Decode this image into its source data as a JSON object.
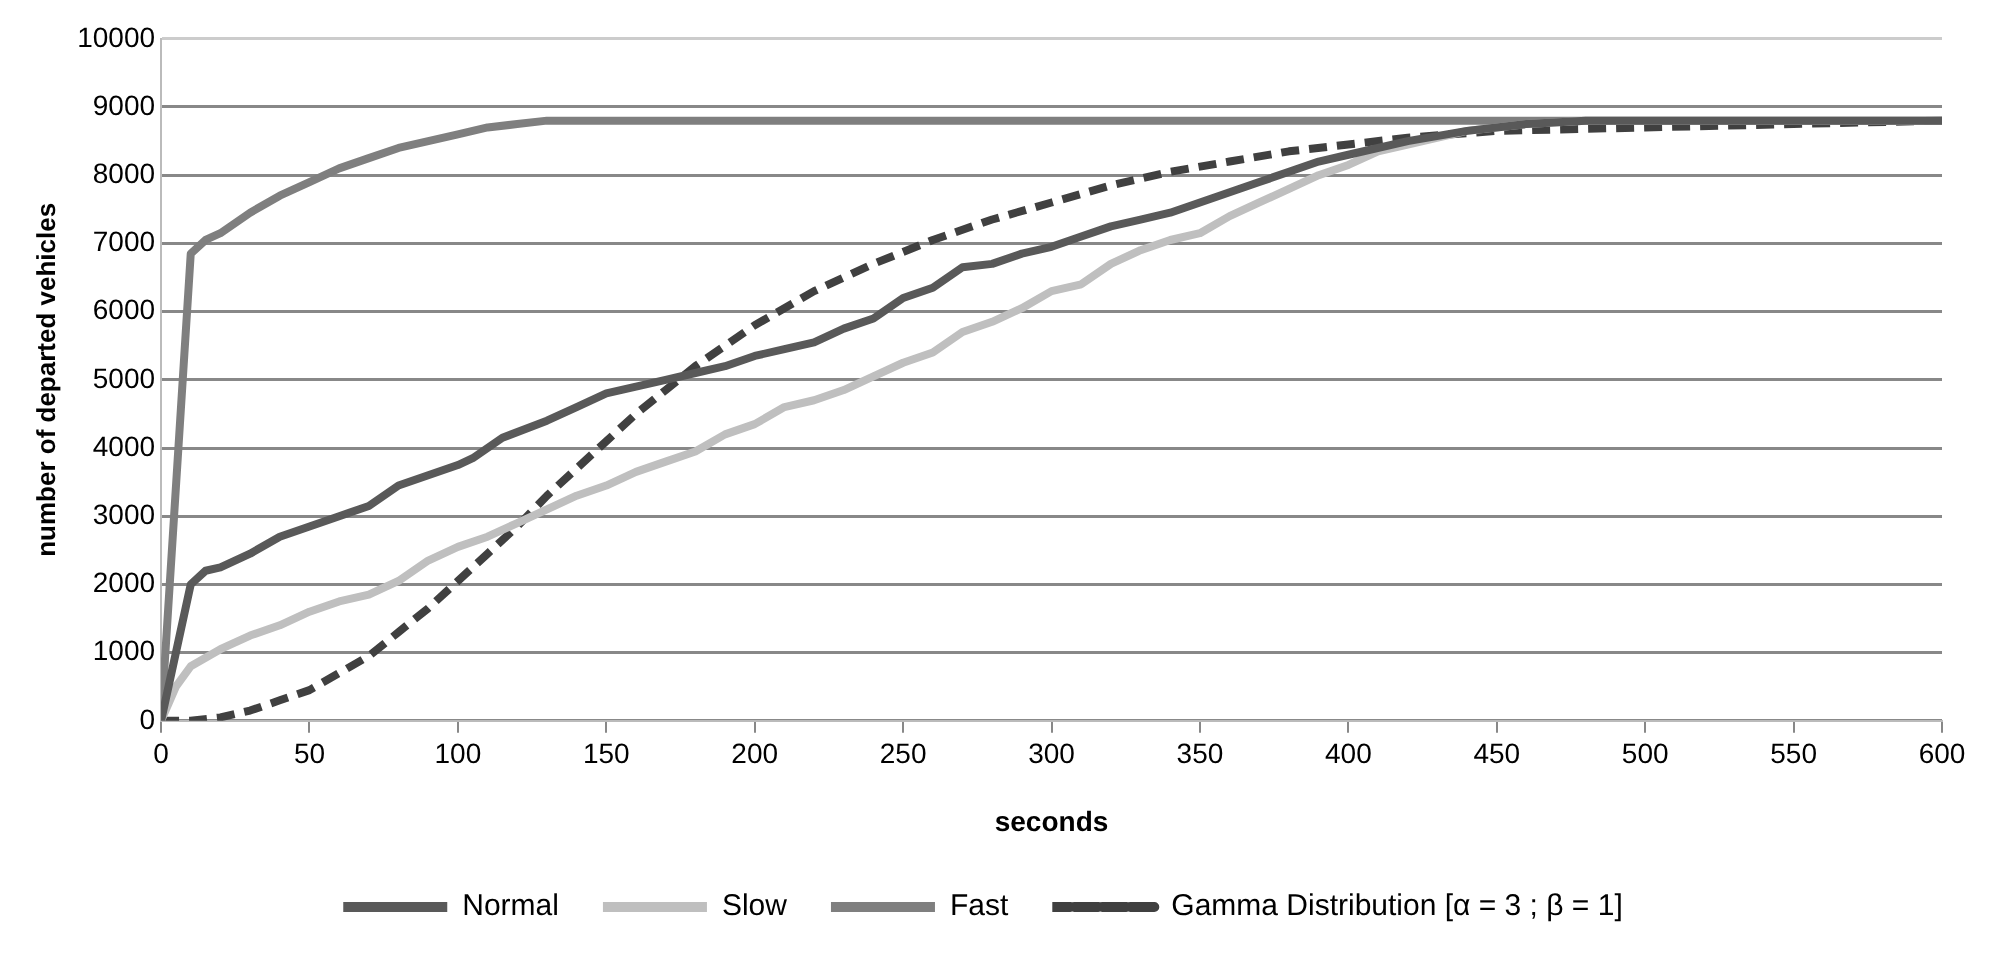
{
  "chart_data": {
    "type": "line",
    "xlabel": "seconds",
    "ylabel": "number of departed vehicles",
    "xlim": [
      0,
      600
    ],
    "xticks": [
      0,
      50,
      100,
      150,
      200,
      250,
      300,
      350,
      400,
      450,
      500,
      550,
      600
    ],
    "ylim": [
      0,
      10000
    ],
    "yticks": [
      0,
      1000,
      2000,
      3000,
      4000,
      5000,
      6000,
      7000,
      8000,
      9000,
      10000
    ],
    "grid": "y",
    "legend": "bottom",
    "marker": "none",
    "series": [
      {
        "name": "Normal",
        "color": "#595959",
        "x": [
          0,
          5,
          10,
          15,
          20,
          30,
          40,
          50,
          60,
          70,
          80,
          90,
          100,
          105,
          115,
          130,
          140,
          150,
          160,
          170,
          180,
          190,
          200,
          210,
          220,
          230,
          240,
          250,
          260,
          270,
          280,
          290,
          300,
          310,
          320,
          330,
          340,
          350,
          360,
          370,
          380,
          390,
          400,
          420,
          440,
          460,
          480,
          600
        ],
        "values": [
          0,
          1000,
          2000,
          2200,
          2250,
          2450,
          2700,
          2850,
          3000,
          3150,
          3450,
          3600,
          3750,
          3850,
          4150,
          4400,
          4600,
          4800,
          4900,
          5000,
          5100,
          5200,
          5350,
          5450,
          5550,
          5750,
          5900,
          6200,
          6350,
          6650,
          6700,
          6850,
          6950,
          7100,
          7250,
          7350,
          7450,
          7600,
          7750,
          7900,
          8050,
          8200,
          8300,
          8500,
          8650,
          8750,
          8800,
          8800
        ]
      },
      {
        "name": "Slow",
        "color": "#bfbfbf",
        "x": [
          0,
          5,
          10,
          20,
          30,
          40,
          50,
          60,
          70,
          80,
          90,
          100,
          110,
          120,
          130,
          140,
          150,
          160,
          170,
          180,
          190,
          200,
          210,
          220,
          230,
          240,
          250,
          260,
          270,
          280,
          290,
          300,
          310,
          320,
          330,
          340,
          350,
          360,
          370,
          380,
          390,
          400,
          410,
          420,
          440,
          460,
          480,
          600
        ],
        "values": [
          0,
          500,
          800,
          1050,
          1250,
          1400,
          1600,
          1750,
          1850,
          2050,
          2350,
          2550,
          2700,
          2900,
          3100,
          3300,
          3450,
          3650,
          3800,
          3950,
          4200,
          4350,
          4600,
          4700,
          4850,
          5050,
          5250,
          5400,
          5700,
          5850,
          6050,
          6300,
          6400,
          6700,
          6900,
          7050,
          7150,
          7400,
          7600,
          7800,
          8000,
          8150,
          8350,
          8450,
          8650,
          8750,
          8800,
          8800
        ]
      },
      {
        "name": "Fast",
        "color": "#7f7f7f",
        "x": [
          0,
          10,
          15,
          20,
          30,
          40,
          50,
          60,
          70,
          80,
          90,
          100,
          110,
          120,
          130,
          600
        ],
        "values": [
          0,
          6850,
          7050,
          7150,
          7450,
          7700,
          7900,
          8100,
          8250,
          8400,
          8500,
          8600,
          8700,
          8750,
          8800,
          8800
        ]
      },
      {
        "name": "Gamma Distribution [α = 3 ; β = 1]",
        "color": "#404040",
        "line_style": "dashed",
        "x": [
          0,
          10,
          20,
          30,
          40,
          50,
          60,
          70,
          80,
          90,
          100,
          110,
          120,
          130,
          140,
          150,
          160,
          170,
          180,
          190,
          200,
          220,
          240,
          260,
          280,
          300,
          320,
          340,
          360,
          380,
          400,
          420,
          450,
          500,
          550,
          600
        ],
        "values": [
          0,
          0,
          50,
          150,
          300,
          450,
          700,
          950,
          1300,
          1650,
          2050,
          2450,
          2850,
          3300,
          3700,
          4100,
          4500,
          4850,
          5200,
          5500,
          5800,
          6300,
          6700,
          7050,
          7350,
          7600,
          7850,
          8050,
          8200,
          8350,
          8450,
          8550,
          8650,
          8700,
          8750,
          8800
        ]
      }
    ]
  }
}
